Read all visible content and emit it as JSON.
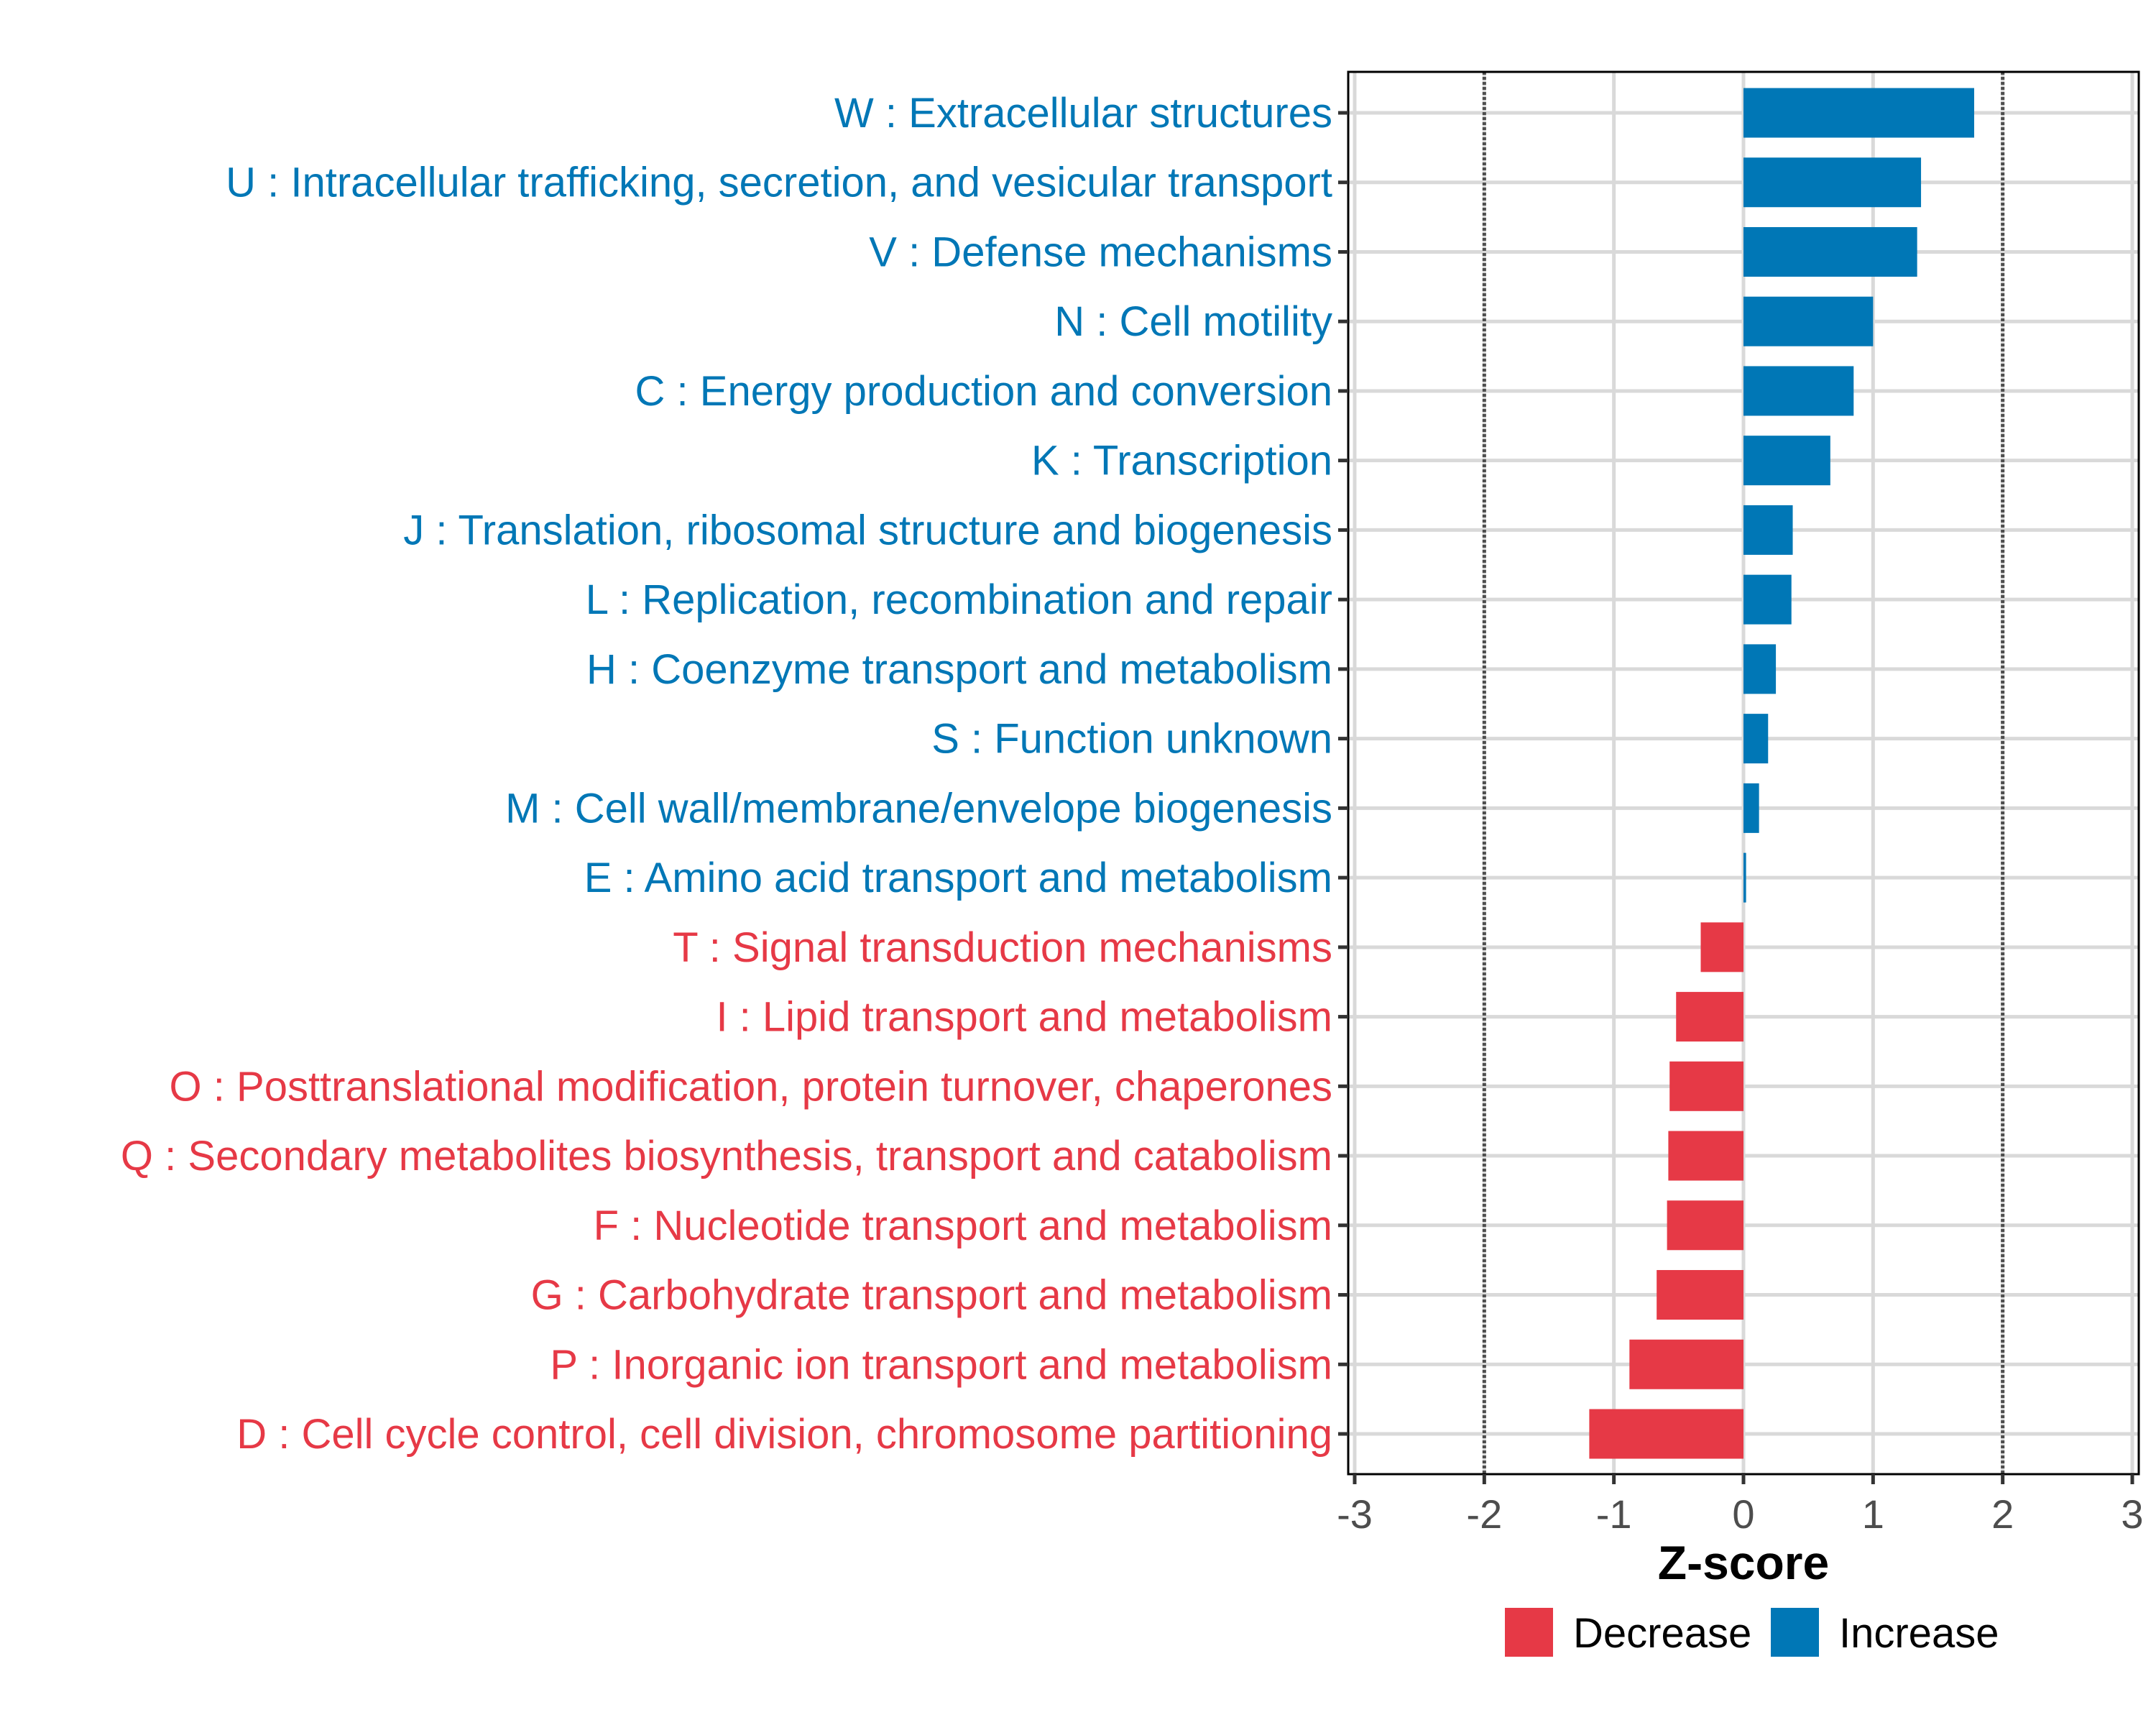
{
  "chart_data": {
    "type": "bar",
    "orientation": "horizontal",
    "title": "",
    "xlabel": "Z-score",
    "ylabel": "",
    "xlim": [
      -3,
      3
    ],
    "xticks": [
      -3,
      -2,
      -1,
      0,
      1,
      2,
      3
    ],
    "xtick_labels": [
      "-3",
      "-2",
      "-1",
      "0",
      "1",
      "2",
      "3"
    ],
    "reference_lines": [
      -2,
      2
    ],
    "grid": true,
    "legend": {
      "position": "bottom",
      "entries": [
        {
          "name": "Decrease",
          "color": "#e63946"
        },
        {
          "name": "Increase",
          "color": "#0077b6"
        }
      ]
    },
    "categories": [
      "W : Extracellular structures",
      "U : Intracellular trafficking, secretion, and vesicular transport",
      "V : Defense mechanisms",
      "N : Cell motility",
      "C : Energy production and conversion",
      "K : Transcription",
      "J : Translation, ribosomal structure and biogenesis",
      "L : Replication, recombination and repair",
      "H : Coenzyme transport and metabolism",
      "S : Function unknown",
      "M : Cell wall/membrane/envelope biogenesis",
      "E : Amino acid transport and metabolism",
      "T : Signal transduction mechanisms",
      "I : Lipid transport and metabolism",
      "O : Posttranslational modification, protein turnover, chaperones",
      "Q : Secondary metabolites biosynthesis, transport and catabolism",
      "F : Nucleotide transport and metabolism",
      "G : Carbohydrate transport and metabolism",
      "P : Inorganic ion transport and metabolism",
      "D : Cell cycle control, cell division, chromosome partitioning"
    ],
    "values": [
      1.78,
      1.37,
      1.34,
      1.0,
      0.85,
      0.67,
      0.38,
      0.37,
      0.25,
      0.19,
      0.12,
      0.02,
      -0.33,
      -0.52,
      -0.57,
      -0.58,
      -0.59,
      -0.67,
      -0.88,
      -1.19
    ],
    "groups": [
      "Increase",
      "Increase",
      "Increase",
      "Increase",
      "Increase",
      "Increase",
      "Increase",
      "Increase",
      "Increase",
      "Increase",
      "Increase",
      "Increase",
      "Decrease",
      "Decrease",
      "Decrease",
      "Decrease",
      "Decrease",
      "Decrease",
      "Decrease",
      "Decrease"
    ]
  }
}
